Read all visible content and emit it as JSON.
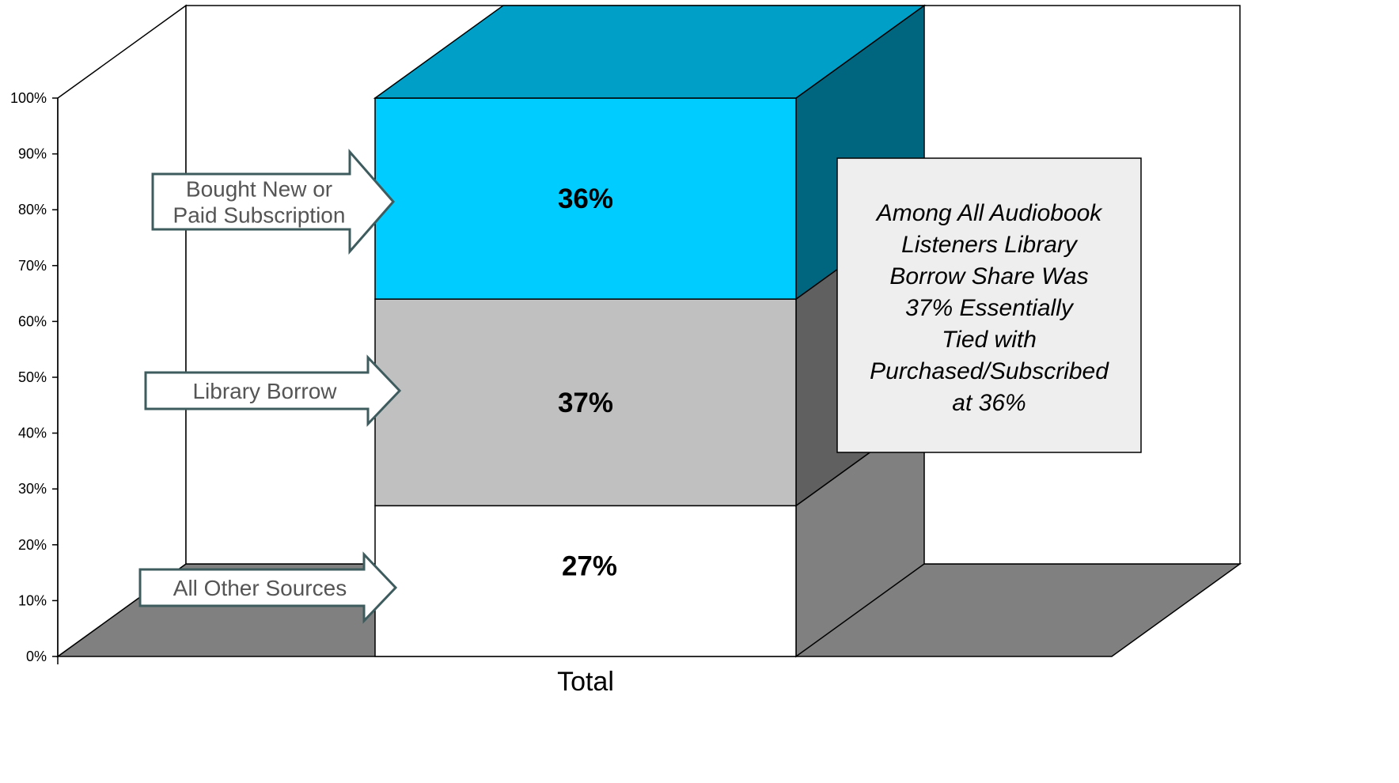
{
  "chart_data": {
    "type": "bar",
    "categories": [
      "Total"
    ],
    "series": [
      {
        "name": "All Other Sources",
        "values": [
          27
        ],
        "label": "27%",
        "color": "#ffffff"
      },
      {
        "name": "Library Borrow",
        "values": [
          37
        ],
        "label": "37%",
        "color": "#c0c0c0"
      },
      {
        "name": "Bought New or Paid Subscription",
        "values": [
          36
        ],
        "label": "36%",
        "color": "#00ccff"
      }
    ],
    "stacked": true,
    "three_d": true,
    "ylim": [
      0,
      100
    ],
    "y_ticks": [
      "0%",
      "10%",
      "20%",
      "30%",
      "40%",
      "50%",
      "60%",
      "70%",
      "80%",
      "90%",
      "100%"
    ],
    "xlabel": "",
    "ylabel": "",
    "grid": false,
    "annotations": [
      {
        "target": "Bought New or Paid Subscription",
        "lines": [
          "Bought New or",
          "Paid Subscription"
        ]
      },
      {
        "target": "Library Borrow",
        "lines": [
          "Library Borrow"
        ]
      },
      {
        "target": "All Other Sources",
        "lines": [
          "All Other Sources"
        ]
      }
    ],
    "callout": {
      "lines": [
        "Among All Audiobook",
        "Listeners Library",
        "Borrow Share Was",
        "37% Essentially",
        "Tied with",
        "Purchased/Subscribed",
        "at 36%"
      ]
    }
  }
}
